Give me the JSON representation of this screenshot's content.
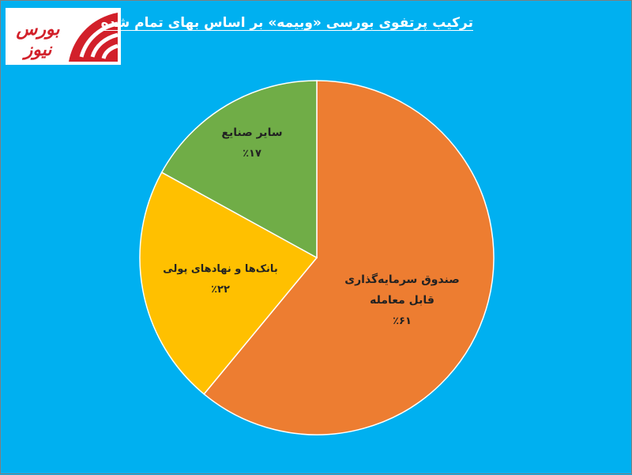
{
  "logo": {
    "text": "بورس نیوز",
    "color": "#d2202a"
  },
  "chart_data": {
    "type": "pie",
    "title": "ترکیب پرتفوی بورسی «وبیمه» بر اساس بهای تمام شده",
    "slices": [
      {
        "label": [
          "صندوق سرمایه‌گذاری",
          "قابل معامله"
        ],
        "value": 61,
        "value_label": "٪۶۱",
        "color": "#ED7D31"
      },
      {
        "label": [
          "بانک‌ها و نهادهای پولی"
        ],
        "value": 22,
        "value_label": "٪۲۲",
        "color": "#FFC000"
      },
      {
        "label": [
          "سایر صنایع"
        ],
        "value": 17,
        "value_label": "٪۱۷",
        "color": "#70AD47"
      }
    ],
    "start_angle_deg": 0,
    "direction": "clockwise",
    "legend": "none"
  }
}
